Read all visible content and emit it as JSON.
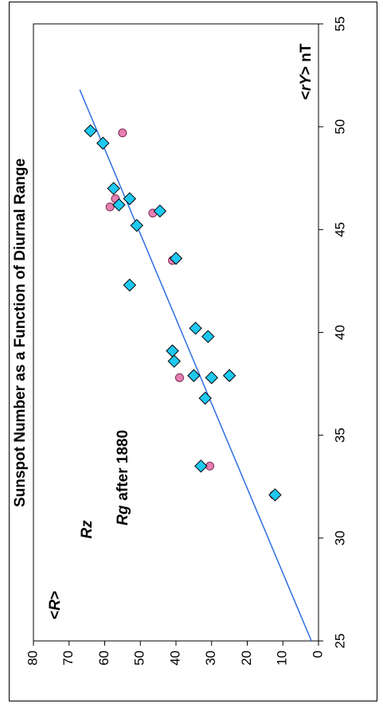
{
  "chart_data": {
    "type": "scatter",
    "title": "Sunspot Number as a Function of Diurnal Range",
    "xlabel_prefix": "<",
    "xlabel_var": "rY",
    "xlabel_suffix": "> nT",
    "ylabel_prefix": "<",
    "ylabel_var": "R",
    "ylabel_suffix": ">",
    "xlim": [
      25,
      55
    ],
    "ylim": [
      0,
      80
    ],
    "xticks": [
      "25",
      "30",
      "35",
      "40",
      "45",
      "50",
      "55"
    ],
    "yticks": [
      "0",
      "10",
      "20",
      "30",
      "40",
      "50",
      "60",
      "70",
      "80"
    ],
    "grid": false,
    "series": [
      {
        "name": "Rz",
        "marker": "diamond",
        "color": "#1EC8F0",
        "label_color": "#2E6FE0",
        "points": [
          {
            "x": 32.1,
            "y": 12.2
          },
          {
            "x": 33.5,
            "y": 33.0
          },
          {
            "x": 36.8,
            "y": 31.8
          },
          {
            "x": 37.8,
            "y": 30.0
          },
          {
            "x": 37.9,
            "y": 25.0
          },
          {
            "x": 37.9,
            "y": 35.0
          },
          {
            "x": 38.6,
            "y": 40.5
          },
          {
            "x": 39.1,
            "y": 41.0
          },
          {
            "x": 39.8,
            "y": 31.0
          },
          {
            "x": 40.2,
            "y": 34.5
          },
          {
            "x": 42.3,
            "y": 53.0
          },
          {
            "x": 43.6,
            "y": 40.0
          },
          {
            "x": 45.2,
            "y": 51.0
          },
          {
            "x": 45.9,
            "y": 44.5
          },
          {
            "x": 46.2,
            "y": 56.0
          },
          {
            "x": 46.5,
            "y": 53.0
          },
          {
            "x": 47.0,
            "y": 57.5
          },
          {
            "x": 49.2,
            "y": 60.5
          },
          {
            "x": 49.8,
            "y": 64.0
          }
        ]
      },
      {
        "name": "after 1880",
        "name_prefix": "Rg",
        "marker": "circle",
        "color": "#E77FB3",
        "label_color": "#E020C8",
        "points": [
          {
            "x": 32.1,
            "y": 12.5
          },
          {
            "x": 33.5,
            "y": 30.5
          },
          {
            "x": 37.8,
            "y": 39.0
          },
          {
            "x": 43.5,
            "y": 41.0
          },
          {
            "x": 45.8,
            "y": 46.5
          },
          {
            "x": 46.1,
            "y": 58.5
          },
          {
            "x": 46.5,
            "y": 57.0
          },
          {
            "x": 49.7,
            "y": 55.0
          }
        ]
      }
    ],
    "fit_line": {
      "color": "#2E6FE0",
      "points": [
        {
          "x": 25.0,
          "y": 2.0
        },
        {
          "x": 51.8,
          "y": 67.0
        }
      ]
    }
  }
}
